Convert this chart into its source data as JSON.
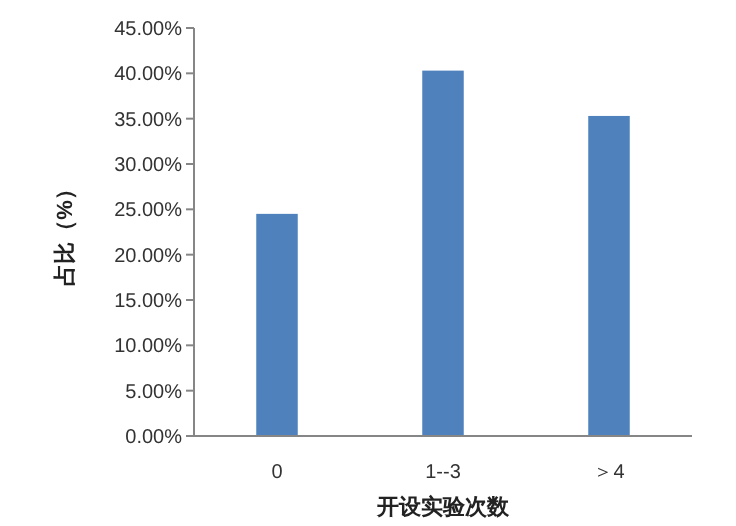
{
  "chart_data": {
    "type": "bar",
    "xlabel": "开设实验次数",
    "ylabel": "占比（%）",
    "categories": [
      "0",
      "1--3",
      "＞4"
    ],
    "values": [
      24.5,
      40.3,
      35.3
    ],
    "color": "#4f81bd",
    "ylim": [
      0,
      45
    ],
    "yticks": [
      {
        "value": 0,
        "label": "0.00%"
      },
      {
        "value": 5,
        "label": "5.00%"
      },
      {
        "value": 10,
        "label": "10.00%"
      },
      {
        "value": 15,
        "label": "15.00%"
      },
      {
        "value": 20,
        "label": "20.00%"
      },
      {
        "value": 25,
        "label": "25.00%"
      },
      {
        "value": 30,
        "label": "30.00%"
      },
      {
        "value": 35,
        "label": "35.00%"
      },
      {
        "value": 40,
        "label": "40.00%"
      },
      {
        "value": 45,
        "label": "45.00%"
      }
    ],
    "grid": false
  }
}
